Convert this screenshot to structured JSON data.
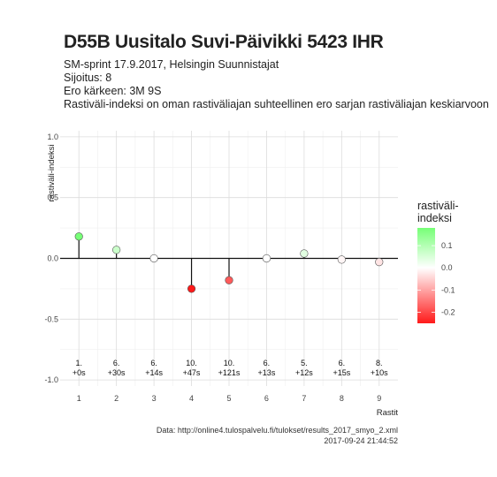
{
  "header": {
    "title": "D55B Uusitalo Suvi-Päivikki 5423 IHR",
    "lines": [
      "SM-sprint 17.9.2017, Helsingin Suunnistajat",
      "Sijoitus: 8",
      "Ero kärkeen: 3M 9S",
      "Rastiväli-indeksi on oman rastiväliajan suhteellinen ero sarjan rastiväliajan keskiarvoon"
    ]
  },
  "caption": {
    "source": "Data: http://online4.tulospalvelu.fi/tulokset/results_2017_smyo_2.xml",
    "timestamp": "2017-09-24 21:44:52"
  },
  "chart_data": {
    "type": "scatter",
    "style": "lollipop",
    "x": [
      1,
      2,
      3,
      4,
      5,
      6,
      7,
      8,
      9
    ],
    "values": [
      0.18,
      0.07,
      0.0,
      -0.25,
      -0.18,
      0.0,
      0.04,
      -0.01,
      -0.03
    ],
    "annotations": [
      [
        "1.",
        "+0s"
      ],
      [
        "6.",
        "+30s"
      ],
      [
        "6.",
        "+14s"
      ],
      [
        "10.",
        "+47s"
      ],
      [
        "10.",
        "+121s"
      ],
      [
        "6.",
        "+13s"
      ],
      [
        "5.",
        "+12s"
      ],
      [
        "6.",
        "+15s"
      ],
      [
        "8.",
        "+10s"
      ]
    ],
    "xlabel": "Rastit",
    "ylabel": "rastiväli-indeksi",
    "xlim": [
      0.5,
      9.5
    ],
    "ylim": [
      -1.05,
      1.05
    ],
    "yticks": [
      -1.0,
      -0.5,
      0.0,
      0.5,
      1.0
    ],
    "ytick_labels": [
      "-1.0",
      "-0.5",
      "0.0",
      "0.5",
      "1.0"
    ],
    "xticks": [
      1,
      2,
      3,
      4,
      5,
      6,
      7,
      8,
      9
    ],
    "grid": true,
    "legend": {
      "title_lines": [
        "rastiväli-",
        "indeksi"
      ],
      "placement": "right",
      "range": [
        -0.25,
        0.18
      ],
      "ticks": [
        0.1,
        0.0,
        -0.1,
        -0.2
      ],
      "tick_labels": [
        "0.1",
        "0.0",
        "-0.1",
        "-0.2"
      ],
      "colors": {
        "high": "#77ff77",
        "mid": "#ffffff",
        "low": "#ff1a1a"
      }
    }
  }
}
